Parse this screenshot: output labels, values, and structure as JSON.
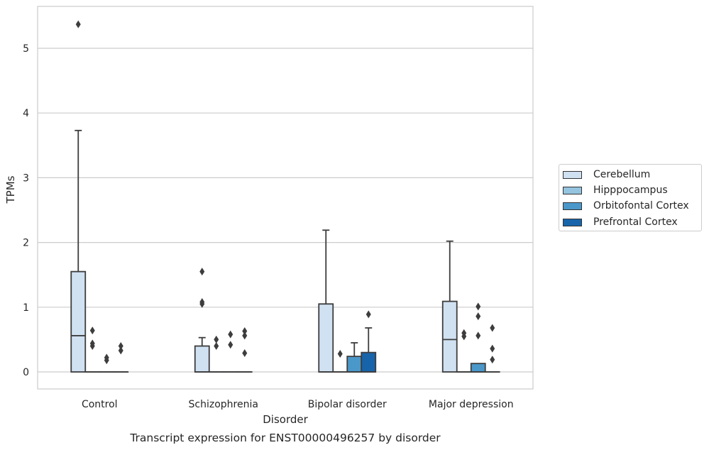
{
  "chart_data": {
    "type": "boxplot",
    "title": "Transcript expression for ENST00000496257 by disorder",
    "xlabel": "Disorder",
    "ylabel": "TPMs",
    "ylim": [
      -0.26,
      5.65
    ],
    "yticks": [
      0,
      1,
      2,
      3,
      4,
      5
    ],
    "grid": "horizontal",
    "legend_position": "right",
    "categories": [
      "Control",
      "Schizophrenia",
      "Bipolar disorder",
      "Major depression"
    ],
    "series": [
      {
        "name": "Cerebellum",
        "color": "#d0e1f2",
        "boxes": [
          {
            "q1": 0,
            "median": 0.56,
            "q3": 1.55,
            "whislo": 0,
            "whishi": 3.73,
            "fliers": [
              5.37
            ]
          },
          {
            "q1": 0,
            "median": 0,
            "q3": 0.4,
            "whislo": 0,
            "whishi": 0.53,
            "fliers": [
              1.05,
              1.08,
              1.55
            ]
          },
          {
            "q1": 0,
            "median": 0,
            "q3": 1.05,
            "whislo": 0,
            "whishi": 2.19,
            "fliers": []
          },
          {
            "q1": 0,
            "median": 0.5,
            "q3": 1.09,
            "whislo": 0,
            "whishi": 2.02,
            "fliers": []
          }
        ]
      },
      {
        "name": "Hipppocampus",
        "color": "#94c4df",
        "boxes": [
          {
            "q1": 0,
            "median": 0,
            "q3": 0,
            "whislo": 0,
            "whishi": 0,
            "fliers": [
              0.4,
              0.44,
              0.64
            ]
          },
          {
            "q1": 0,
            "median": 0,
            "q3": 0,
            "whislo": 0,
            "whishi": 0,
            "fliers": [
              0.4,
              0.5
            ]
          },
          {
            "q1": 0,
            "median": 0,
            "q3": 0,
            "whislo": 0,
            "whishi": 0,
            "fliers": [
              0.28
            ]
          },
          {
            "q1": 0,
            "median": 0,
            "q3": 0,
            "whislo": 0,
            "whishi": 0,
            "fliers": [
              0.55,
              0.6
            ]
          }
        ]
      },
      {
        "name": "Orbitofontal Cortex",
        "color": "#4a98c9",
        "boxes": [
          {
            "q1": 0,
            "median": 0,
            "q3": 0,
            "whislo": 0,
            "whishi": 0,
            "fliers": [
              0.18,
              0.22
            ]
          },
          {
            "q1": 0,
            "median": 0,
            "q3": 0,
            "whislo": 0,
            "whishi": 0,
            "fliers": [
              0.42,
              0.58
            ]
          },
          {
            "q1": 0,
            "median": 0,
            "q3": 0.24,
            "whislo": 0,
            "whishi": 0.45,
            "fliers": []
          },
          {
            "q1": 0,
            "median": 0,
            "q3": 0.13,
            "whislo": 0,
            "whishi": 0.13,
            "fliers": [
              0.56,
              0.86,
              1.01
            ]
          }
        ]
      },
      {
        "name": "Prefrontal Cortex",
        "color": "#1764ab",
        "boxes": [
          {
            "q1": 0,
            "median": 0,
            "q3": 0,
            "whislo": 0,
            "whishi": 0,
            "fliers": [
              0.33,
              0.4
            ]
          },
          {
            "q1": 0,
            "median": 0,
            "q3": 0,
            "whislo": 0,
            "whishi": 0,
            "fliers": [
              0.29,
              0.56,
              0.63
            ]
          },
          {
            "q1": 0,
            "median": 0,
            "q3": 0.3,
            "whislo": 0,
            "whishi": 0.68,
            "fliers": [
              0.89
            ]
          },
          {
            "q1": 0,
            "median": 0,
            "q3": 0,
            "whislo": 0,
            "whishi": 0,
            "fliers": [
              0.19,
              0.36,
              0.68
            ]
          }
        ]
      }
    ]
  }
}
